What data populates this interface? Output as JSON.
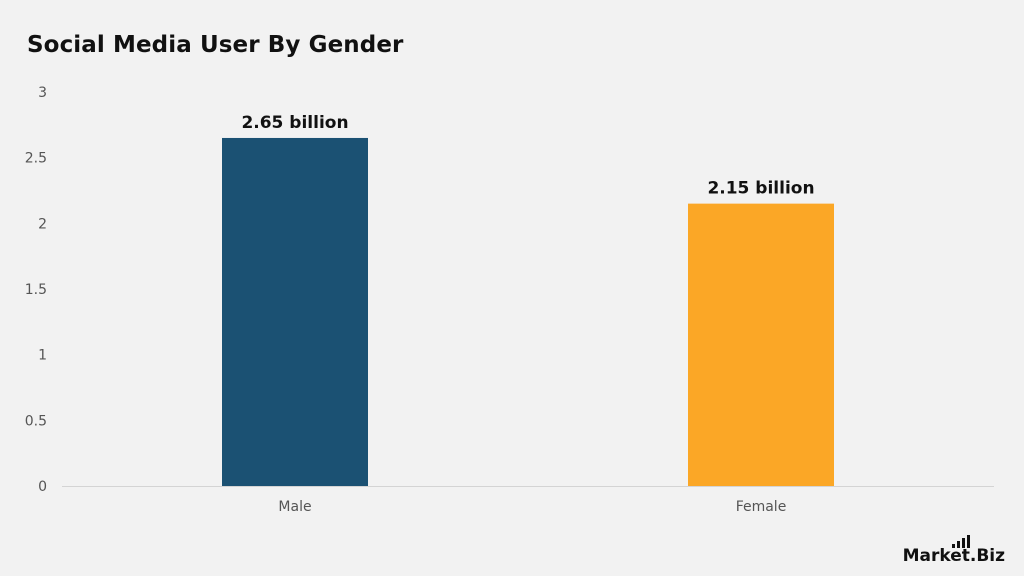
{
  "chart_data": {
    "type": "bar",
    "title": "Social Media User By Gender",
    "xlabel": "",
    "ylabel": "",
    "categories": [
      "Male",
      "Female"
    ],
    "values": [
      2.65,
      2.15
    ],
    "data_labels": [
      "2.65 billion",
      "2.15 billion"
    ],
    "colors": [
      "#1b5173",
      "#fba726"
    ],
    "ylim": [
      0,
      3
    ],
    "yticks": [
      0,
      0.5,
      1,
      1.5,
      2,
      2.5,
      3
    ],
    "ytick_labels": [
      "0",
      "0.5",
      "1",
      "1.5",
      "2",
      "2.5",
      "3"
    ],
    "grid": false,
    "legend": "none"
  },
  "branding": {
    "logo_text_main": "Market",
    "logo_text_suffix": ".Biz"
  }
}
